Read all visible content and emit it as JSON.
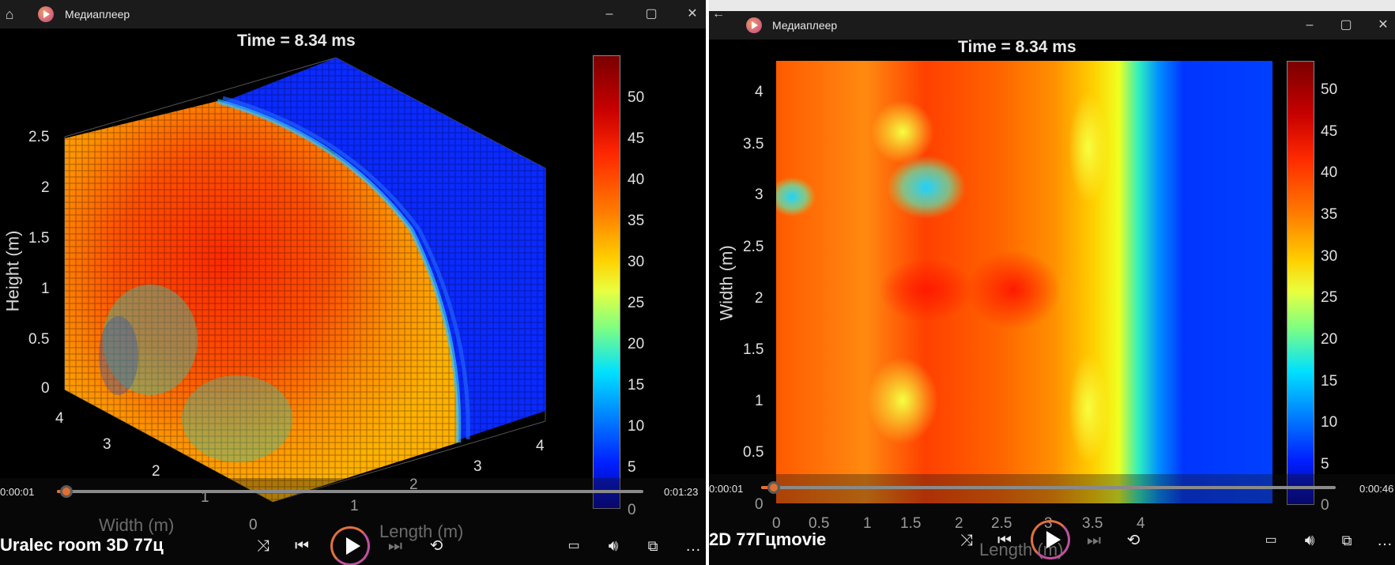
{
  "left": {
    "window_title": "Медиаплеер",
    "plot_title": "Time = 8.34 ms",
    "ylabel": "Height (m)",
    "width_label": "Width (m)",
    "length_label": "Length (m)",
    "height_ticks": [
      "2.5",
      "2",
      "1.5",
      "1",
      "0.5",
      "0"
    ],
    "width_ticks": [
      "4",
      "3",
      "2",
      "1",
      "0"
    ],
    "length_ticks": [
      "1",
      "2",
      "3",
      "4"
    ],
    "colorbar_ticks": [
      "50",
      "45",
      "40",
      "35",
      "30",
      "25",
      "20",
      "15",
      "10",
      "5",
      "0"
    ],
    "time_current": "0:00:01",
    "time_total": "0:01:23",
    "progress": 0.015,
    "media_title": "Uralec room 3D 77ц"
  },
  "right": {
    "window_title": "Медиаплеер",
    "plot_title": "Time = 8.34 ms",
    "ylabel": "Width (m)",
    "xlabel": "Length (m)",
    "y_ticks": [
      "4",
      "3.5",
      "3",
      "2.5",
      "2",
      "1.5",
      "1",
      "0.5",
      "0"
    ],
    "x_ticks": [
      "0",
      "0.5",
      "1",
      "1.5",
      "2",
      "2.5",
      "3",
      "3.5",
      "4"
    ],
    "colorbar_ticks": [
      "50",
      "45",
      "40",
      "35",
      "30",
      "25",
      "20",
      "15",
      "10",
      "5",
      "0"
    ],
    "time_current": "0:00:01",
    "time_total": "0:00:46",
    "progress": 0.022,
    "media_title": "2D 77Гцmovie"
  },
  "icons": {
    "home": "home-icon",
    "app": "media-player-icon",
    "minimize": "minimize-icon",
    "maximize": "maximize-icon",
    "close": "close-icon",
    "shuffle": "shuffle-icon",
    "previous": "previous-icon",
    "play": "play-icon",
    "next": "next-icon",
    "repeat": "repeat-icon",
    "subtitles": "subtitles-icon",
    "volume": "volume-icon",
    "miniplayer": "miniplayer-icon",
    "more": "more-icon"
  },
  "colors": {
    "accent": "#e07030",
    "play_ring": "#c050a0"
  }
}
